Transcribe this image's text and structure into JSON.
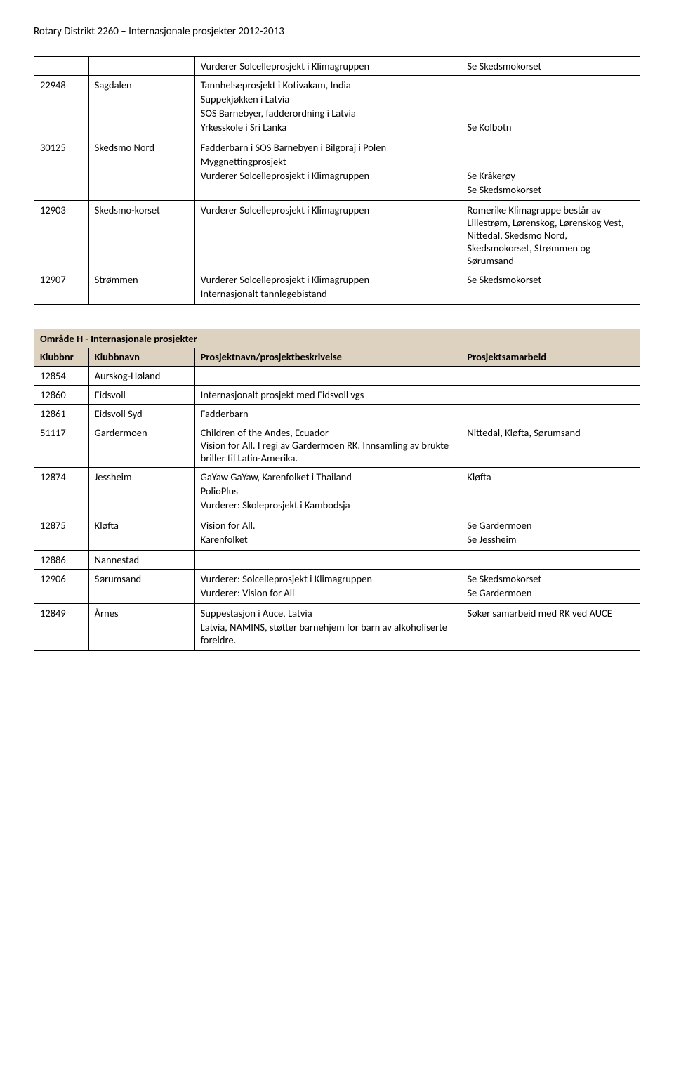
{
  "page_header": "Rotary Distrikt 2260 – Internasjonale prosjekter 2012-2013",
  "colors": {
    "section_bg": "#ddd2c0",
    "border": "#000000",
    "background": "#ffffff"
  },
  "table1": {
    "rows": [
      {
        "id": "",
        "name": "",
        "desc": "Vurderer Solcelleprosjekt i Klimagruppen",
        "coop": "Se Skedsmokorset"
      },
      {
        "id": "22948",
        "name": "Sagdalen",
        "desc_lines": [
          "Tannhelseprosjekt i Kotivakam, India",
          "Suppekjøkken i Latvia",
          "SOS Barnebyer, fadderordning i Latvia",
          "Yrkesskole i Sri Lanka"
        ],
        "coop_lines": [
          "",
          "",
          "",
          "Se Kolbotn"
        ]
      },
      {
        "id": "30125",
        "name": "Skedsmo Nord",
        "desc_lines": [
          "Fadderbarn i SOS Barnebyen i Bilgoraj i Polen",
          "Myggnettingprosjekt",
          "Vurderer Solcelleprosjekt i Klimagruppen"
        ],
        "coop_lines": [
          "",
          "Se Kråkerøy",
          "Se Skedsmokorset"
        ]
      },
      {
        "id": "12903",
        "name": "Skedsmo-korset",
        "desc": "Vurderer Solcelleprosjekt i Klimagruppen",
        "coop": "Romerike Klimagruppe består av Lillestrøm, Lørenskog, Lørenskog Vest, Nittedal, Skedsmo Nord, Skedsmokorset, Strømmen og Sørumsand"
      },
      {
        "id": "12907",
        "name": "Strømmen",
        "desc_lines": [
          "Vurderer Solcelleprosjekt i Klimagruppen",
          "Internasjonalt tannlegebistand"
        ],
        "coop": "Se Skedsmokorset"
      }
    ]
  },
  "table2": {
    "section_title": "Område H - Internasjonale prosjekter",
    "headers": [
      "Klubbnr",
      "Klubbnavn",
      "Prosjektnavn/prosjektbeskrivelse",
      "Prosjektsamarbeid"
    ],
    "rows": [
      {
        "id": "12854",
        "name": "Aurskog-Høland",
        "desc": "",
        "coop": ""
      },
      {
        "id": "12860",
        "name": "Eidsvoll",
        "desc": "Internasjonalt prosjekt med Eidsvoll vgs",
        "coop": ""
      },
      {
        "id": "12861",
        "name": "Eidsvoll Syd",
        "desc": "Fadderbarn",
        "coop": ""
      },
      {
        "id": "51117",
        "name": "Gardermoen",
        "desc": "Children of the Andes,  Ecuador\nVision for All. I regi av Gardermoen RK. Innsamling av brukte briller til Latin-Amerika.",
        "coop": "Nittedal, Kløfta, Sørumsand"
      },
      {
        "id": "12874",
        "name": "Jessheim",
        "desc_lines": [
          "GaYaw GaYaw, Karenfolket i Thailand",
          "PolioPlus",
          "Vurderer: Skoleprosjekt i Kambodsja"
        ],
        "coop": "Kløfta"
      },
      {
        "id": "12875",
        "name": "Kløfta",
        "desc_lines": [
          "Vision for All.",
          "Karenfolket"
        ],
        "coop_lines": [
          "Se Gardermoen",
          "Se Jessheim"
        ]
      },
      {
        "id": "12886",
        "name": "Nannestad",
        "desc": "",
        "coop": ""
      },
      {
        "id": "12906",
        "name": "Sørumsand",
        "desc_lines": [
          "Vurderer: Solcelleprosjekt i Klimagruppen",
          "Vurderer: Vision for All"
        ],
        "coop_lines": [
          "Se Skedsmokorset",
          "Se Gardermoen"
        ]
      },
      {
        "id": "12849",
        "name": "Årnes",
        "desc_lines": [
          "Suppestasjon i Auce, Latvia",
          "Latvia, NAMINS, støtter barnehjem for barn av alkoholiserte foreldre."
        ],
        "coop": "Søker samarbeid med RK ved AUCE"
      }
    ]
  }
}
